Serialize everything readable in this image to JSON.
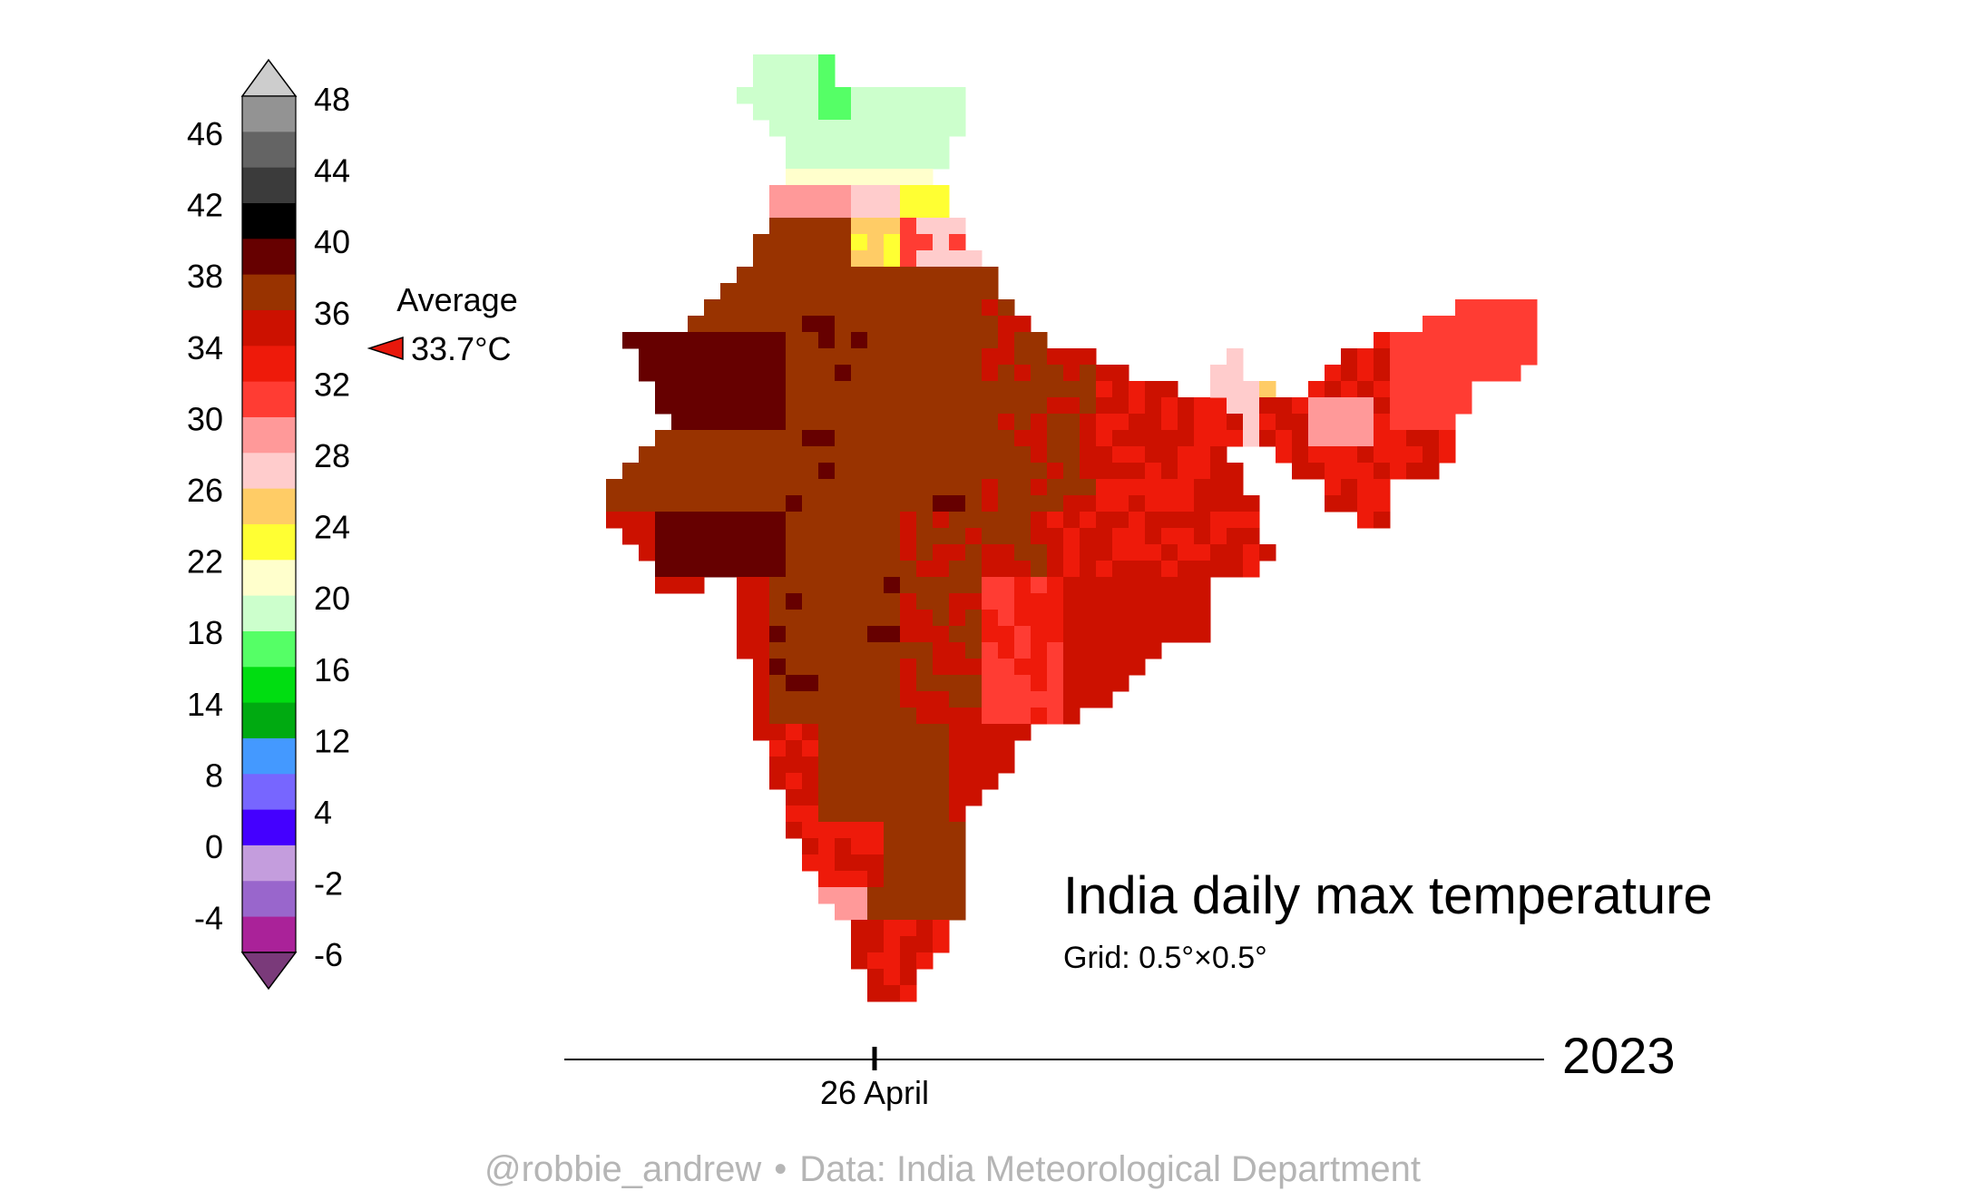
{
  "title": "India daily max temperature",
  "subtitle": "Grid: 0.5°×0.5°",
  "year": "2023",
  "date_label": "26 April",
  "credit": {
    "author": "@robbie_andrew",
    "separator": "•",
    "source": "Data: India Meteorological Department"
  },
  "average": {
    "label": "Average",
    "value_text": "33.7°C",
    "value": 33.7,
    "marker_color": "#e8180c"
  },
  "legend": {
    "top_color": "#cdcdcd",
    "bottom_color": "#7a3a7a",
    "bands_top_to_bottom": [
      "#939393",
      "#646464",
      "#3b3b3b",
      "#000000",
      "#660000",
      "#993300",
      "#cc1100",
      "#ee1a0a",
      "#ff3c33",
      "#ff9999",
      "#ffcccc",
      "#ffcc66",
      "#ffff33",
      "#ffffcc",
      "#ccffcc",
      "#55ff66",
      "#00dd11",
      "#00aa11",
      "#4499ff",
      "#7766ff",
      "#4400ff",
      "#c49ddd",
      "#9966cc",
      "#aa2299"
    ],
    "right_labels": [
      "48",
      "44",
      "40",
      "36",
      "32",
      "28",
      "24",
      "20",
      "16",
      "12",
      "4",
      "-2",
      "-6"
    ],
    "left_labels": [
      "46",
      "42",
      "38",
      "34",
      "30",
      "26",
      "22",
      "18",
      "14",
      "8",
      "0",
      "-4"
    ]
  },
  "map": {
    "colors": {
      "dark_brown": "#660000",
      "brown": "#993300",
      "dark_red": "#cc1100",
      "red": "#ee1a0a",
      "bright_red": "#ff3c33",
      "pink": "#ff9999",
      "light_pink": "#ffcccc",
      "orange": "#ffcc66",
      "yellow": "#ffff33",
      "cream": "#ffffcc",
      "light_green": "#ccffcc",
      "green": "#55ff66"
    }
  }
}
